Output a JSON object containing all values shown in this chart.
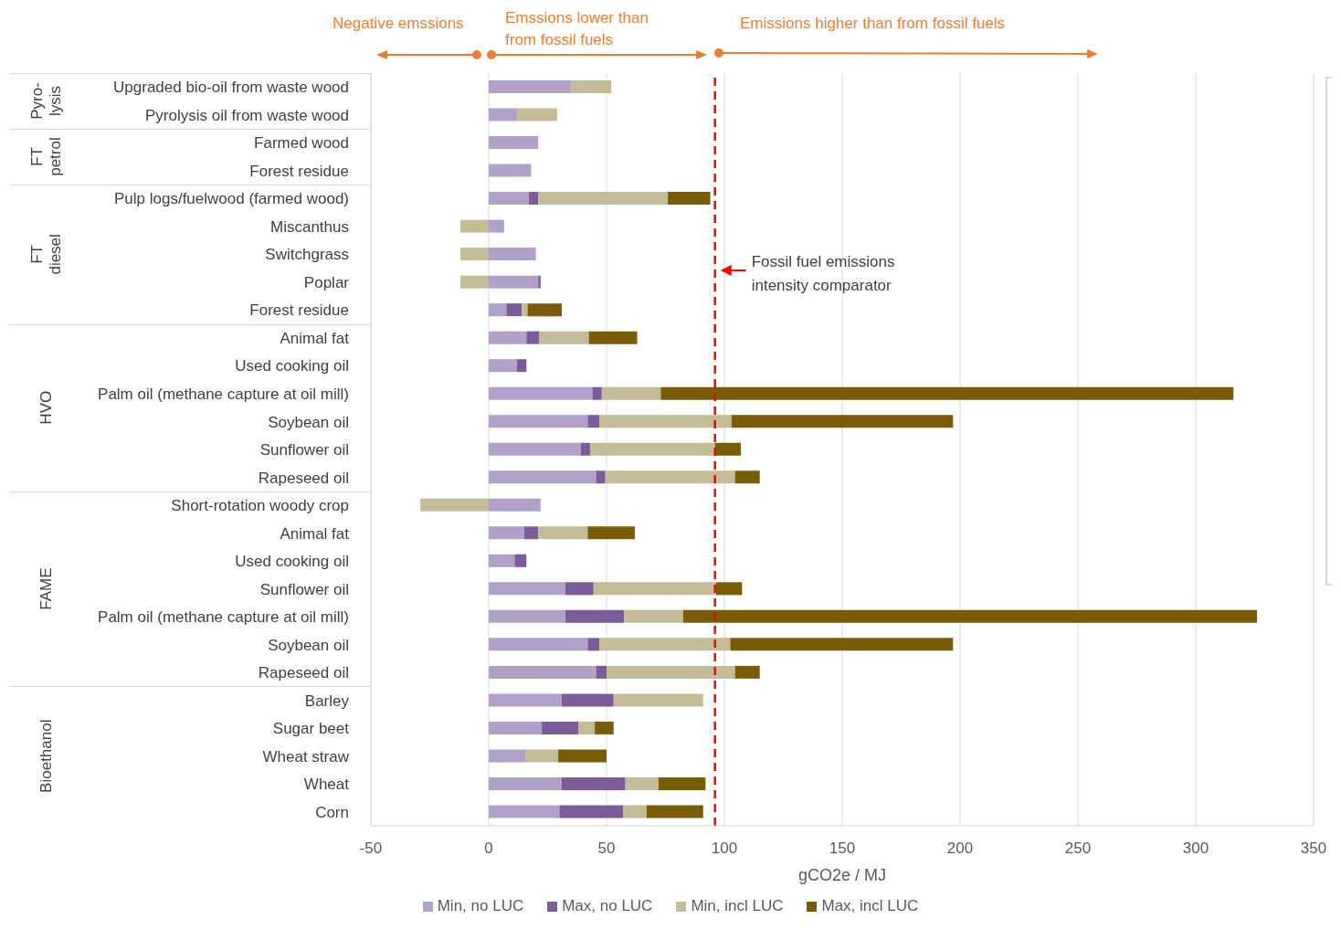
{
  "chart_data": {
    "type": "bar",
    "orientation": "horizontal",
    "stacked": true,
    "xlabel": "gCO2e / MJ",
    "categories": [
      "Upgraded bio-oil from waste wood",
      "Pyrolysis oil from waste wood",
      "Farmed wood",
      "Forest residue",
      "Pulp logs/fuelwood (farmed wood)",
      "Miscanthus",
      "Switchgrass",
      "Poplar",
      "Forest residue",
      "Animal fat",
      "Used cooking oil",
      "Palm oil (methane capture at oil mill)",
      "Soybean oil",
      "Sunflower oil",
      "Rapeseed oil",
      "Short-rotation woody crop",
      "Animal fat",
      "Used cooking oil",
      "Sunflower oil",
      "Palm oil (methane capture at oil mill)",
      "Soybean oil",
      "Rapeseed oil",
      "Barley",
      "Sugar beet",
      "Wheat straw",
      "Wheat",
      "Corn"
    ],
    "series": [
      {
        "name": "Min, no LUC",
        "color": "#b1a0c7",
        "values": [
          35,
          12,
          21,
          18,
          17,
          6.5,
          20,
          21,
          7.5,
          16,
          12,
          44,
          42,
          39,
          45.5,
          22,
          15,
          11,
          32.5,
          32.5,
          42,
          45.5,
          31,
          22.5,
          15.5,
          31,
          30
        ]
      },
      {
        "name": "Max, no LUC",
        "color": "#7b5c99",
        "values": [
          null,
          null,
          null,
          null,
          4,
          null,
          null,
          1,
          6.5,
          5.5,
          4,
          4,
          5,
          4,
          4,
          null,
          6,
          5,
          12,
          25,
          5,
          4.5,
          22,
          15.5,
          null,
          27,
          27
        ]
      },
      {
        "name": "Min, incl LUC",
        "color": "#c4bc96",
        "values": [
          17,
          17,
          null,
          null,
          55,
          -12,
          -12,
          -12,
          2.5,
          21,
          null,
          25,
          56,
          53,
          55,
          -29,
          21,
          null,
          52,
          25,
          55.5,
          54.5,
          38,
          7,
          14,
          14,
          10
        ]
      },
      {
        "name": "Max, incl LUC",
        "color": "#7a5c08",
        "values": [
          null,
          null,
          null,
          null,
          18,
          null,
          null,
          null,
          14.5,
          20.5,
          null,
          243,
          94,
          11,
          10.5,
          null,
          20,
          null,
          11,
          243.5,
          94.5,
          10.5,
          null,
          8,
          20.5,
          20,
          24
        ]
      }
    ],
    "xlim": [
      -50,
      350
    ],
    "xticks": [
      -50,
      0,
      50,
      100,
      150,
      200,
      250,
      300,
      350
    ],
    "grid": "x",
    "legend": "bottom",
    "ref_lines": [
      {
        "axis": "x",
        "value": 96,
        "label": "Fossil fuel emissions intensity comparator",
        "color": "#ff0000",
        "line_style": "dashed"
      }
    ],
    "annotations": [
      "Negative emssions",
      "Emssions lower than from fossil fuels",
      "Emissions higher than from fossil fuels",
      "Pyro-lysis",
      "FT petrol",
      "FT diesel",
      "HVO",
      "FAME",
      "Bioethanol"
    ]
  }
}
